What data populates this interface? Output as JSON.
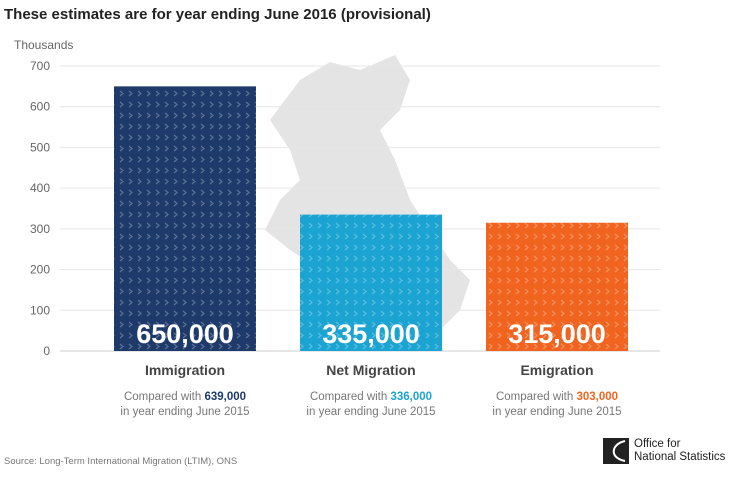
{
  "chart_data": {
    "type": "bar",
    "title": "These estimates are for year ending June 2016 (provisional)",
    "ylabel": "Thousands",
    "ylim": [
      0,
      700
    ],
    "yticks": [
      0,
      100,
      200,
      300,
      400,
      500,
      600,
      700
    ],
    "grid": true,
    "categories": [
      "Immigration",
      "Net Migration",
      "Emigration"
    ],
    "values": [
      650,
      335,
      315
    ],
    "data_labels": [
      "650,000",
      "335,000",
      "315,000"
    ],
    "colors": [
      "#1e3a6b",
      "#1ba3d1",
      "#f06420"
    ],
    "comparisons": [
      {
        "prefix": "Compared with ",
        "value": "639,000",
        "suffix": "in year ending June 2015"
      },
      {
        "prefix": "Compared with ",
        "value": "336,000",
        "suffix": "in year ending June 2015"
      },
      {
        "prefix": "Compared with ",
        "value": "303,000",
        "suffix": "in year ending June 2015"
      }
    ]
  },
  "source": "Source: Long-Term International Migration (LTIM), ONS",
  "logo": {
    "line1": "Office for",
    "line2": "National Statistics"
  }
}
